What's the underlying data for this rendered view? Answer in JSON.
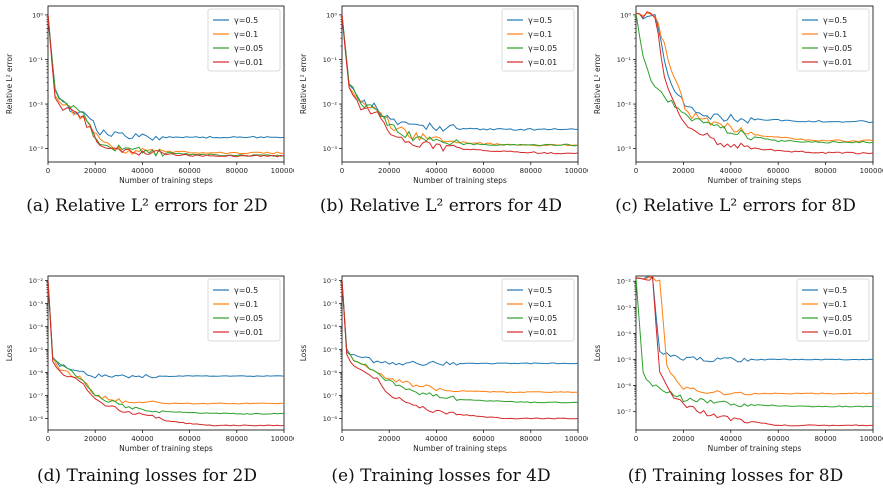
{
  "colors": {
    "g0": "#1f77b4",
    "g1": "#ff7f0e",
    "g2": "#2ca02c",
    "g3": "#d62728"
  },
  "chart_data": [
    {
      "type": "line",
      "caption": "(a) Relative L² errors for 2D",
      "xlabel": "Number of training steps",
      "ylabel": "Relative L² error",
      "xticks": [
        "0",
        "20000",
        "40000",
        "60000",
        "80000",
        "100000"
      ],
      "yticks": [
        "10⁻³",
        "10⁻²",
        "10⁻¹",
        "10⁰"
      ],
      "xlim": [
        0,
        100000
      ],
      "ylim_log10": [
        -3.3,
        0.2
      ],
      "legend_position": "top-right",
      "x": [
        0,
        3000,
        8000,
        15000,
        22000,
        30000,
        40000,
        50000,
        60000,
        70000,
        80000,
        90000,
        100000
      ],
      "series": [
        {
          "name": "γ=0.5",
          "values": [
            1,
            0.02,
            0.009,
            0.006,
            0.0025,
            0.0019,
            0.0018,
            0.0018,
            0.0018,
            0.0018,
            0.0018,
            0.0018,
            0.0018
          ]
        },
        {
          "name": "γ=0.1",
          "values": [
            1,
            0.015,
            0.008,
            0.005,
            0.0015,
            0.0009,
            0.0009,
            0.00085,
            0.00083,
            0.0008,
            0.0008,
            0.0008,
            0.0008
          ]
        },
        {
          "name": "γ=0.05",
          "values": [
            1,
            0.02,
            0.01,
            0.006,
            0.0012,
            0.001,
            0.0009,
            0.0008,
            0.00075,
            0.00072,
            0.0007,
            0.0007,
            0.0007
          ]
        },
        {
          "name": "γ=0.01",
          "values": [
            1,
            0.012,
            0.007,
            0.005,
            0.001,
            0.0009,
            0.0008,
            0.00075,
            0.0007,
            0.0007,
            0.00068,
            0.00068,
            0.00068
          ]
        }
      ]
    },
    {
      "type": "line",
      "caption": "(b) Relative L² errors for 4D",
      "xlabel": "Number of training steps",
      "ylabel": "Relative L² error",
      "xticks": [
        "0",
        "20000",
        "40000",
        "60000",
        "80000",
        "100000"
      ],
      "yticks": [
        "10⁻³",
        "10⁻²",
        "10⁻¹",
        "10⁰"
      ],
      "xlim": [
        0,
        100000
      ],
      "ylim_log10": [
        -3.3,
        0.2
      ],
      "legend_position": "top-right",
      "x": [
        0,
        3000,
        8000,
        15000,
        22000,
        30000,
        40000,
        50000,
        60000,
        70000,
        80000,
        90000,
        100000
      ],
      "series": [
        {
          "name": "γ=0.5",
          "values": [
            1,
            0.03,
            0.012,
            0.008,
            0.004,
            0.0032,
            0.003,
            0.0028,
            0.0027,
            0.0027,
            0.0027,
            0.0027,
            0.0027
          ]
        },
        {
          "name": "γ=0.1",
          "values": [
            1,
            0.025,
            0.01,
            0.007,
            0.003,
            0.002,
            0.0016,
            0.0014,
            0.0013,
            0.0012,
            0.0012,
            0.0012,
            0.0012
          ]
        },
        {
          "name": "γ=0.05",
          "values": [
            1,
            0.03,
            0.011,
            0.007,
            0.0028,
            0.0018,
            0.0015,
            0.0013,
            0.0012,
            0.0012,
            0.0012,
            0.0012,
            0.0012
          ]
        },
        {
          "name": "γ=0.01",
          "values": [
            1,
            0.02,
            0.008,
            0.006,
            0.002,
            0.0014,
            0.0011,
            0.001,
            0.0009,
            0.00085,
            0.00082,
            0.0008,
            0.0008
          ]
        }
      ]
    },
    {
      "type": "line",
      "caption": "(c) Relative L² errors for 8D",
      "xlabel": "Number of training steps",
      "ylabel": "Relative L² error",
      "xticks": [
        "0",
        "20000",
        "40000",
        "60000",
        "80000",
        "100000"
      ],
      "yticks": [
        "10⁻³",
        "10⁻²",
        "10⁻¹",
        "10⁰"
      ],
      "xlim": [
        0,
        100000
      ],
      "ylim_log10": [
        -3.3,
        0.2
      ],
      "legend_position": "top-right",
      "x": [
        0,
        3000,
        8000,
        12000,
        15000,
        22000,
        30000,
        40000,
        50000,
        60000,
        70000,
        80000,
        90000,
        100000
      ],
      "series": [
        {
          "name": "γ=0.5",
          "values": [
            1.1,
            1,
            1,
            0.1,
            0.03,
            0.008,
            0.0055,
            0.0048,
            0.0045,
            0.0043,
            0.0042,
            0.0041,
            0.0041,
            0.004
          ]
        },
        {
          "name": "γ=0.1",
          "values": [
            1.1,
            1,
            1,
            0.2,
            0.05,
            0.006,
            0.004,
            0.003,
            0.002,
            0.0018,
            0.0016,
            0.0015,
            0.0015,
            0.0015
          ]
        },
        {
          "name": "γ=0.05",
          "values": [
            1.1,
            0.1,
            0.02,
            0.015,
            0.01,
            0.005,
            0.004,
            0.0025,
            0.0018,
            0.0015,
            0.0014,
            0.0014,
            0.0014,
            0.0014
          ]
        },
        {
          "name": "γ=0.01",
          "values": [
            1.1,
            1,
            0.9,
            0.05,
            0.012,
            0.003,
            0.0018,
            0.0012,
            0.001,
            0.0009,
            0.00085,
            0.0008,
            0.0008,
            0.0008
          ]
        }
      ]
    },
    {
      "type": "line",
      "caption": "(d) Training losses for 2D",
      "xlabel": "Number of training steps",
      "ylabel": "Loss",
      "xticks": [
        "0",
        "20000",
        "40000",
        "60000",
        "80000",
        "100000"
      ],
      "yticks": [
        "10⁻⁸",
        "10⁻⁷",
        "10⁻⁶",
        "10⁻⁵",
        "10⁻⁴",
        "10⁻³",
        "10⁻²"
      ],
      "xlim": [
        0,
        100000
      ],
      "ylim_log10": [
        -8.5,
        -1.8
      ],
      "legend_position": "top-right",
      "x": [
        0,
        2000,
        5000,
        10000,
        15000,
        20000,
        30000,
        40000,
        50000,
        60000,
        70000,
        80000,
        90000,
        100000
      ],
      "series": [
        {
          "name": "γ=0.5",
          "values": [
            0.01,
            5e-06,
            2e-06,
            1.5e-06,
            1e-06,
            7e-07,
            7e-07,
            7e-07,
            7e-07,
            7e-07,
            7e-07,
            7e-07,
            7e-07,
            7e-07
          ]
        },
        {
          "name": "γ=0.1",
          "values": [
            0.01,
            4e-06,
            1.5e-06,
            8e-07,
            5e-07,
            1e-07,
            6e-08,
            5e-08,
            4.5e-08,
            4.5e-08,
            4.5e-08,
            4.5e-08,
            4.5e-08,
            4.5e-08
          ]
        },
        {
          "name": "γ=0.05",
          "values": [
            0.01,
            5e-06,
            2e-06,
            1e-06,
            4e-07,
            1e-07,
            4e-08,
            2.5e-08,
            2e-08,
            1.8e-08,
            1.7e-08,
            1.6e-08,
            1.6e-08,
            1.6e-08
          ]
        },
        {
          "name": "γ=0.01",
          "values": [
            0.01,
            3e-06,
            1e-06,
            6e-07,
            3e-07,
            6e-08,
            2.5e-08,
            1.5e-08,
            8e-09,
            6e-09,
            5e-09,
            5e-09,
            5e-09,
            5e-09
          ]
        }
      ]
    },
    {
      "type": "line",
      "caption": "(e) Training losses for 4D",
      "xlabel": "Number of training steps",
      "ylabel": "Loss",
      "xticks": [
        "0",
        "20000",
        "40000",
        "60000",
        "80000",
        "100000"
      ],
      "yticks": [
        "10⁻⁸",
        "10⁻⁷",
        "10⁻⁶",
        "10⁻⁵",
        "10⁻⁴",
        "10⁻³",
        "10⁻²"
      ],
      "xlim": [
        0,
        100000
      ],
      "ylim_log10": [
        -8.5,
        -1.8
      ],
      "legend_position": "top-right",
      "x": [
        0,
        2000,
        5000,
        10000,
        15000,
        20000,
        30000,
        40000,
        50000,
        60000,
        70000,
        80000,
        90000,
        100000
      ],
      "series": [
        {
          "name": "γ=0.5",
          "values": [
            0.01,
            1e-05,
            5e-06,
            4e-06,
            3e-06,
            2.6e-06,
            2.5e-06,
            2.5e-06,
            2.5e-06,
            2.5e-06,
            2.5e-06,
            2.5e-06,
            2.5e-06,
            2.5e-06
          ]
        },
        {
          "name": "γ=0.1",
          "values": [
            0.01,
            8e-06,
            3e-06,
            2e-06,
            1e-06,
            5e-07,
            3e-07,
            2e-07,
            1.6e-07,
            1.5e-07,
            1.4e-07,
            1.4e-07,
            1.4e-07,
            1.4e-07
          ]
        },
        {
          "name": "γ=0.05",
          "values": [
            0.01,
            8e-06,
            4e-06,
            2e-06,
            1e-06,
            4e-07,
            1.5e-07,
            1e-07,
            7e-08,
            6e-08,
            5.5e-08,
            5e-08,
            5e-08,
            5e-08
          ]
        },
        {
          "name": "γ=0.01",
          "values": [
            0.01,
            6e-06,
            2e-06,
            1e-06,
            5e-07,
            1e-07,
            4e-08,
            2e-08,
            1.5e-08,
            1.2e-08,
            1e-08,
            1e-08,
            1e-08,
            1e-08
          ]
        }
      ]
    },
    {
      "type": "line",
      "caption": "(f) Training losses for 8D",
      "xlabel": "Number of training steps",
      "ylabel": "Loss",
      "xticks": [
        "0",
        "20000",
        "40000",
        "60000",
        "80000",
        "100000"
      ],
      "yticks": [
        "10⁻⁷",
        "10⁻⁶",
        "10⁻⁵",
        "10⁻⁴",
        "10⁻³",
        "10⁻²"
      ],
      "xlim": [
        0,
        100000
      ],
      "ylim_log10": [
        -7.7,
        -1.8
      ],
      "legend_position": "top-right",
      "x": [
        0,
        3000,
        7000,
        10000,
        13000,
        16000,
        20000,
        30000,
        40000,
        50000,
        60000,
        70000,
        80000,
        90000,
        100000
      ],
      "series": [
        {
          "name": "γ=0.5",
          "values": [
            0.013,
            0.013,
            0.012,
            2e-05,
            1.5e-05,
            1.2e-05,
            1.1e-05,
            1e-05,
            1e-05,
            1e-05,
            1e-05,
            1e-05,
            1e-05,
            1e-05,
            1e-05
          ]
        },
        {
          "name": "γ=0.1",
          "values": [
            0.013,
            0.013,
            0.012,
            0.011,
            5e-06,
            2e-06,
            8e-07,
            6e-07,
            5e-07,
            5e-07,
            5e-07,
            5e-07,
            5e-07,
            5e-07,
            5e-07
          ]
        },
        {
          "name": "γ=0.05",
          "values": [
            0.013,
            3e-06,
            1e-06,
            8e-07,
            6e-07,
            5e-07,
            3e-07,
            2.5e-07,
            2e-07,
            1.8e-07,
            1.7e-07,
            1.6e-07,
            1.6e-07,
            1.6e-07,
            1.6e-07
          ]
        },
        {
          "name": "γ=0.01",
          "values": [
            0.013,
            0.013,
            0.012,
            3e-06,
            1e-06,
            4e-07,
            2e-07,
            8e-08,
            5e-08,
            4e-08,
            3e-08,
            3e-08,
            3e-08,
            3e-08,
            3e-08
          ]
        }
      ]
    }
  ]
}
